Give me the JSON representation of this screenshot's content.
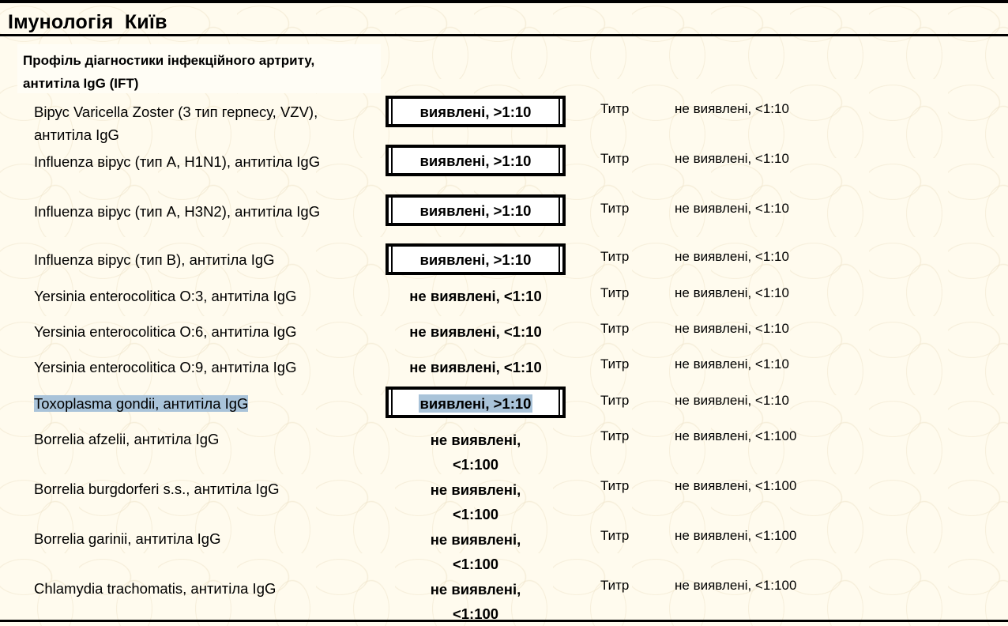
{
  "header": {
    "title": "Імунологія  Київ"
  },
  "profile": {
    "title": "Профіль діагностики інфекційного артриту, антитіла IgG (IFT)"
  },
  "rows": [
    {
      "name": "Вірус Varicella Zoster (3 тип герпесу, VZV), антитіла IgG",
      "result": "виявлені, >1:10",
      "unit": "Титр",
      "reference": "не виявлені, <1:10"
    },
    {
      "name": "Influenza вірус (тип А, H1N1), антитіла IgG",
      "result": "виявлені, >1:10",
      "unit": "Титр",
      "reference": "не виявлені, <1:10"
    },
    {
      "name": "Influenza вірус (тип А, H3N2), антитіла IgG",
      "result": "виявлені, >1:10",
      "unit": "Титр",
      "reference": "не виявлені, <1:10"
    },
    {
      "name": "Influenza вірус (тип В), антитіла IgG",
      "result": "виявлені, >1:10",
      "unit": "Титр",
      "reference": "не виявлені, <1:10"
    },
    {
      "name": "Yersinia enterocolitica O:3, антитіла IgG",
      "result": "не виявлені, <1:10",
      "unit": "Титр",
      "reference": "не виявлені, <1:10"
    },
    {
      "name": "Yersinia enterocolitica O:6, антитіла IgG",
      "result": "не виявлені, <1:10",
      "unit": "Титр",
      "reference": "не виявлені, <1:10"
    },
    {
      "name": "Yersinia enterocolitica O:9, антитіла IgG",
      "result": "не виявлені, <1:10",
      "unit": "Титр",
      "reference": "не виявлені, <1:10"
    },
    {
      "name": "Toxoplasma gondii, антитіла IgG",
      "result": "виявлені, >1:10",
      "unit": "Титр",
      "reference": "не виявлені, <1:10"
    },
    {
      "name": "Borrelia afzelii, антитіла IgG",
      "result": "не виявлені, <1:100",
      "unit": "Титр",
      "reference": "не виявлені, <1:100"
    },
    {
      "name": "Borrelia burgdorferi s.s., антитіла IgG",
      "result": "не виявлені, <1:100",
      "unit": "Титр",
      "reference": "не виявлені, <1:100"
    },
    {
      "name": "Borrelia garinii, антитіла IgG",
      "result": "не виявлені, <1:100",
      "unit": "Титр",
      "reference": "не виявлені, <1:100"
    },
    {
      "name": "Chlamydia trachomatis, антитіла IgG",
      "result": "не виявлені, <1:100",
      "unit": "Титр",
      "reference": "не виявлені, <1:100"
    }
  ]
}
